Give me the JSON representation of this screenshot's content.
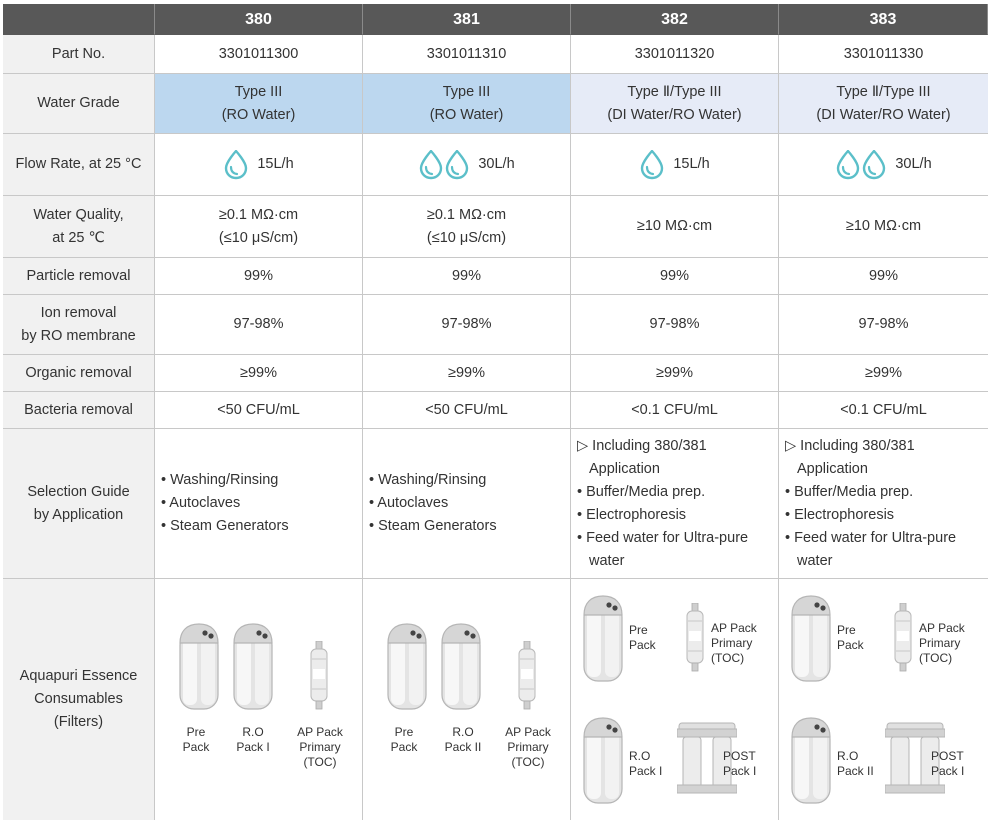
{
  "header": {
    "corner": "",
    "models": [
      "380",
      "381",
      "382",
      "383"
    ]
  },
  "rows": {
    "part_no": {
      "label": "Part No.",
      "values": [
        "3301011300",
        "3301011310",
        "3301011320",
        "3301011330"
      ]
    },
    "water_grade": {
      "label": "Water Grade",
      "values": [
        {
          "line1": "Type III",
          "line2": "(RO Water)"
        },
        {
          "line1": "Type III",
          "line2": "(RO Water)"
        },
        {
          "line1": "Type Ⅱ/Type III",
          "line2": "(DI Water/RO Water)"
        },
        {
          "line1": "Type Ⅱ/Type III",
          "line2": "(DI Water/RO Water)"
        }
      ]
    },
    "flow_rate": {
      "label": "Flow Rate, at 25 °C",
      "values": [
        "15L/h",
        "30L/h",
        "15L/h",
        "30L/h"
      ],
      "drop_counts": [
        1,
        2,
        1,
        2
      ],
      "drop_color": "#5bbfc9"
    },
    "water_quality": {
      "label_line1": "Water Quality,",
      "label_line2": "at 25 ℃",
      "values": [
        {
          "line1": "≥0.1 MΩ·cm",
          "line2": "(≤10 μS/cm)"
        },
        {
          "line1": "≥0.1 MΩ·cm",
          "line2": "(≤10 μS/cm)"
        },
        {
          "line1": "≥10 MΩ·cm",
          "line2": ""
        },
        {
          "line1": "≥10 MΩ·cm",
          "line2": ""
        }
      ]
    },
    "particle_removal": {
      "label": "Particle removal",
      "values": [
        "99%",
        "99%",
        "99%",
        "99%"
      ]
    },
    "ion_removal": {
      "label_line1": "Ion removal",
      "label_line2": "by RO membrane",
      "values": [
        "97-98%",
        "97-98%",
        "97-98%",
        "97-98%"
      ]
    },
    "organic_removal": {
      "label": "Organic removal",
      "values": [
        "≥99%",
        "≥99%",
        "≥99%",
        "≥99%"
      ]
    },
    "bacteria_removal": {
      "label": "Bacteria removal",
      "values": [
        "<50 CFU/mL",
        "<50 CFU/mL",
        "<0.1 CFU/mL",
        "<0.1 CFU/mL"
      ]
    },
    "selection_guide": {
      "label_line1": "Selection Guide",
      "label_line2": "by Application",
      "basic": [
        "• Washing/Rinsing",
        "• Autoclaves",
        "• Steam Generators"
      ],
      "advanced": [
        "▷ Including 380/381",
        "Application",
        "• Buffer/Media prep.",
        "• Electrophoresis",
        "• Feed water for Ultra-pure",
        "water"
      ]
    },
    "consumables": {
      "label_line1": "Aquapuri Essence",
      "label_line2": "Consumables",
      "label_line3": "(Filters)",
      "col380": {
        "pre": [
          "Pre",
          "Pack"
        ],
        "ro": [
          "R.O",
          "Pack I"
        ],
        "ap": [
          "AP Pack",
          "Primary",
          "(TOC)"
        ]
      },
      "col381": {
        "pre": [
          "Pre",
          "Pack"
        ],
        "ro": [
          "R.O",
          "Pack II"
        ],
        "ap": [
          "AP Pack",
          "Primary",
          "(TOC)"
        ]
      },
      "col382": {
        "pre": [
          "Pre",
          "Pack"
        ],
        "ap": [
          "AP Pack",
          "Primary",
          "(TOC)"
        ],
        "ro": [
          "R.O",
          "Pack I"
        ],
        "post": [
          "POST",
          "Pack I"
        ]
      },
      "col383": {
        "pre": [
          "Pre",
          "Pack"
        ],
        "ap": [
          "AP Pack",
          "Primary",
          "(TOC)"
        ],
        "ro": [
          "R.O",
          "Pack II"
        ],
        "post": [
          "POST",
          "Pack I"
        ]
      }
    }
  },
  "colors": {
    "header_bg": "#585858",
    "label_bg": "#f1f1f1",
    "grade_blue": "#bcd7ef",
    "grade_light": "#e6ebf7",
    "border": "#c8c8c8"
  }
}
